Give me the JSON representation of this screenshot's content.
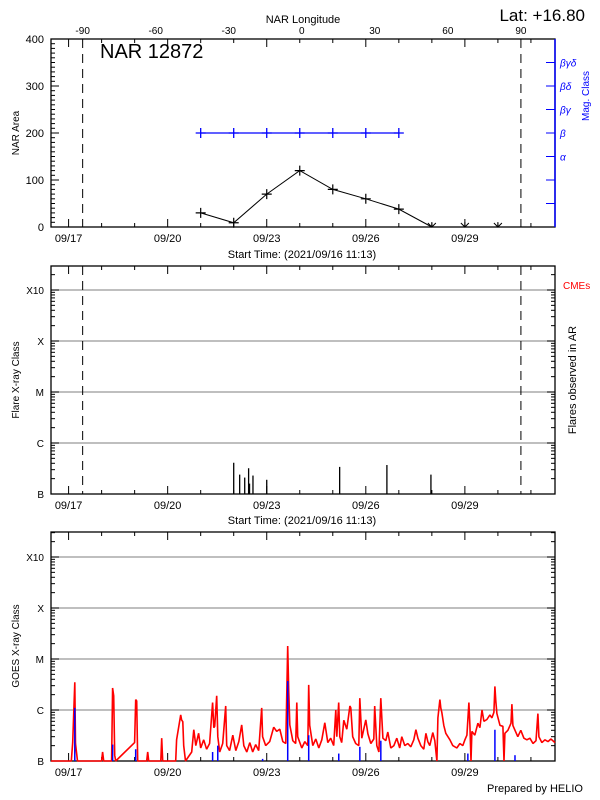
{
  "header": {
    "lat": "Lat: +16.80",
    "title": "NAR 12872",
    "footer": "Prepared by HELIO"
  },
  "colors": {
    "axis": "#000000",
    "grid": "#999999",
    "mag_class": "#0000ff",
    "goes": "#ff0000",
    "ar_flares": "#0000ff",
    "cme": "#ff0000"
  },
  "chart_data": [
    {
      "type": "line",
      "xlabel": "Start Time: (2021/09/16 11:13)",
      "x2label": "NAR Longitude",
      "ylabel": "NAR Area",
      "y2label": "Mag. Class",
      "xlim": [
        "2021/09/16 11:13",
        "2021/10/01 17:30"
      ],
      "x2lim": [
        -103,
        104
      ],
      "xticks": [
        "09/17",
        "09/20",
        "09/23",
        "09/26",
        "09/29"
      ],
      "x2ticks": [
        "-90",
        "-60",
        "-30",
        "0",
        "30",
        "60",
        "90"
      ],
      "limb_longitudes": [
        -90,
        90
      ],
      "ylim": [
        0,
        400
      ],
      "yticks": [
        "0",
        "100",
        "200",
        "300",
        "400"
      ],
      "y2ticks": [
        "",
        "",
        "α",
        "β",
        "βγ",
        "βδ",
        "βγδ"
      ],
      "series": [
        {
          "x": [
            "09/21 00:00",
            "09/22 00:00",
            "09/23 00:00",
            "09/24 00:00",
            "09/25 00:00",
            "09/26 00:00",
            "09/27 00:00",
            "09/28 00:00",
            "09/29 00:00",
            "09/30 00:00"
          ],
          "y": [
            30,
            9,
            70,
            120,
            80,
            60,
            38,
            0,
            0,
            0
          ]
        }
      ],
      "mag_class": {
        "x": [
          "09/21 00:00",
          "09/22 00:00",
          "09/23 00:00",
          "09/24 00:00",
          "09/25 00:00",
          "09/26 00:00",
          "09/27 00:00"
        ],
        "y": [
          "β",
          "β",
          "β",
          "β",
          "β",
          "β",
          "β"
        ]
      }
    },
    {
      "type": "bar",
      "xlabel": "Start Time: (2021/09/16 11:13)",
      "ylabel": "Flare X-ray Class",
      "y2label": "Flares observed in AR",
      "legend": "CMEs",
      "yticks": [
        "B",
        "C",
        "M",
        "X",
        "X10"
      ],
      "grid": true,
      "flares": {
        "x": [
          "09/22 00:00",
          "09/22 04:20",
          "09/22 08:00",
          "09/22 10:50",
          "09/22 11:30",
          "09/22 14:00",
          "09/23 00:00",
          "09/25 05:00",
          "09/26 15:20",
          "09/27 23:20"
        ],
        "class": [
          "B4.1",
          "B2.4",
          "B2.1",
          "B3.2",
          "B1.6",
          "B2.3",
          "B1.9",
          "B3.4",
          "B3.7",
          "B2.4"
        ]
      }
    },
    {
      "type": "line",
      "ylabel": "GOES X-ray Class",
      "yticks": [
        "B",
        "C",
        "M",
        "X",
        "X10"
      ],
      "xticks": [
        "09/17",
        "09/20",
        "09/23",
        "09/26",
        "09/29"
      ],
      "grid": true,
      "goes": [
        [
          "09/16 11:13",
          "A5"
        ],
        [
          "09/17 02:00",
          "A5"
        ],
        [
          "09/17 03:00",
          "B2.3"
        ],
        [
          "09/17 04:30",
          "C3.5"
        ],
        [
          "09/17 05:00",
          "B2.2"
        ],
        [
          "09/17 06:30",
          "A5"
        ],
        [
          "09/18 00:00",
          "A5"
        ],
        [
          "09/18 00:45",
          "B1.5"
        ],
        [
          "09/18 01:30",
          "A5"
        ],
        [
          "09/18 07:15",
          "A5"
        ],
        [
          "09/18 08:00",
          "C2.7"
        ],
        [
          "09/18 08:45",
          "C1.9"
        ],
        [
          "09/18 09:30",
          "B1.3"
        ],
        [
          "09/18 10:15",
          "A5"
        ],
        [
          "09/19 00:00",
          "B2.3"
        ],
        [
          "09/19 00:45",
          "C1.6"
        ],
        [
          "09/19 01:30",
          "C1.5"
        ],
        [
          "09/19 02:15",
          "A5"
        ],
        [
          "09/19 08:45",
          "A5"
        ],
        [
          "09/19 09:30",
          "B1.5"
        ],
        [
          "09/19 10:15",
          "A5"
        ],
        [
          "09/19 19:00",
          "A5"
        ],
        [
          "09/19 19:40",
          "B2.8"
        ],
        [
          "09/19 20:25",
          "A5"
        ],
        [
          "09/20 05:50",
          "A5"
        ],
        [
          "09/20 06:30",
          "B2.6"
        ],
        [
          "09/20 09:30",
          "B8.0"
        ],
        [
          "09/20 10:10",
          "B6.4"
        ],
        [
          "09/20 11:00",
          "B5.9"
        ],
        [
          "09/20 11:40",
          "B2.0"
        ],
        [
          "09/20 13:00",
          "A5"
        ],
        [
          "09/20 17:30",
          "B1.5"
        ],
        [
          "09/20 19:00",
          "B4.1"
        ],
        [
          "09/20 20:25",
          "B2.0"
        ],
        [
          "09/20 22:30",
          "B3.5"
        ],
        [
          "09/21 00:00",
          "B1.8"
        ],
        [
          "09/21 02:10",
          "B2.6"
        ],
        [
          "09/21 04:20",
          "B1.7"
        ],
        [
          "09/21 06:30",
          "B2.2"
        ],
        [
          "09/21 08:40",
          "C1.4"
        ],
        [
          "09/21 09:30",
          "B4.5"
        ],
        [
          "09/21 10:10",
          "B4.8"
        ],
        [
          "09/21 11:40",
          "C1.9"
        ],
        [
          "09/21 12:25",
          "B3.0"
        ],
        [
          "09/21 13:50",
          "B1.5"
        ],
        [
          "09/21 16:00",
          "B2.2"
        ],
        [
          "09/21 18:10",
          "C1.2"
        ],
        [
          "09/21 18:55",
          "B2.0"
        ],
        [
          "09/21 21:00",
          "B1.6"
        ],
        [
          "09/21 23:20",
          "B3.2"
        ],
        [
          "09/22 01:30",
          "B1.6"
        ],
        [
          "09/22 03:40",
          "B2.4"
        ],
        [
          "09/22 05:50",
          "B5.1"
        ],
        [
          "09/22 07:20",
          "B2.0"
        ],
        [
          "09/22 09:30",
          "B1.5"
        ],
        [
          "09/22 11:40",
          "B2.3"
        ],
        [
          "09/22 13:50",
          "B1.5"
        ],
        [
          "09/22 16:00",
          "B2.1"
        ],
        [
          "09/22 18:10",
          "B1.6"
        ],
        [
          "09/22 20:20",
          "C1.1"
        ],
        [
          "09/22 21:00",
          "B3.0"
        ],
        [
          "09/22 23:15",
          "B2.0"
        ],
        [
          "09/23 02:10",
          "B2.4"
        ],
        [
          "09/23 05:05",
          "B4.6"
        ],
        [
          "09/23 07:15",
          "B3.8"
        ],
        [
          "09/23 09:30",
          "B4.2"
        ],
        [
          "09/23 11:40",
          "B2.4"
        ],
        [
          "09/23 13:50",
          "B2.2"
        ],
        [
          "09/23 15:15",
          "M1.8"
        ],
        [
          "09/23 16:00",
          "C2.5"
        ],
        [
          "09/23 16:45",
          "B5.1"
        ],
        [
          "09/23 18:55",
          "B2.5"
        ],
        [
          "09/23 21:05",
          "B2.2"
        ],
        [
          "09/23 21:50",
          "C1.4"
        ],
        [
          "09/23 22:30",
          "B3.0"
        ],
        [
          "09/24 01:30",
          "B1.8"
        ],
        [
          "09/24 03:40",
          "B2.4"
        ],
        [
          "09/24 05:50",
          "B2.0"
        ],
        [
          "09/24 06:30",
          "C3.1"
        ],
        [
          "09/24 07:15",
          "B5.0"
        ],
        [
          "09/24 09:30",
          "B2.0"
        ],
        [
          "09/24 11:40",
          "B2.7"
        ],
        [
          "09/24 13:50",
          "B1.8"
        ],
        [
          "09/24 16:00",
          "B2.6"
        ],
        [
          "09/24 18:10",
          "B5.6"
        ],
        [
          "09/24 20:25",
          "B2.3"
        ],
        [
          "09/24 22:30",
          "B2.8"
        ],
        [
          "09/25 00:40",
          "B2.0"
        ],
        [
          "09/25 02:10",
          "C1.0"
        ],
        [
          "09/25 02:55",
          "B3.0"
        ],
        [
          "09/25 04:20",
          "C1.4"
        ],
        [
          "09/25 05:05",
          "B3.0"
        ],
        [
          "09/25 06:30",
          "B2.3"
        ],
        [
          "09/25 08:00",
          "B6.3"
        ],
        [
          "09/25 10:10",
          "B4.2"
        ],
        [
          "09/25 12:25",
          "C1.2"
        ],
        [
          "09/25 13:05",
          "C1.1"
        ],
        [
          "09/25 14:30",
          "B3.0"
        ],
        [
          "09/25 16:40",
          "B2.2"
        ],
        [
          "09/25 18:55",
          "B2.0"
        ],
        [
          "09/25 19:40",
          "C1.7"
        ],
        [
          "09/25 21:05",
          "B2.8"
        ],
        [
          "09/26 00:00",
          "B6.4"
        ],
        [
          "09/26 01:30",
          "B3.4"
        ],
        [
          "09/26 03:40",
          "B2.2"
        ],
        [
          "09/26 05:50",
          "B2.7"
        ],
        [
          "09/26 06:30",
          "C1.2"
        ],
        [
          "09/26 08:00",
          "B2.0"
        ],
        [
          "09/26 09:30",
          "B1.5"
        ],
        [
          "09/26 10:55",
          "C1.7"
        ],
        [
          "09/26 12:25",
          "B2.8"
        ],
        [
          "09/26 14:30",
          "B2.5"
        ],
        [
          "09/26 16:00",
          "B3.7"
        ],
        [
          "09/26 18:10",
          "B1.8"
        ],
        [
          "09/26 20:25",
          "B2.0"
        ],
        [
          "09/26 22:30",
          "B2.8"
        ],
        [
          "09/27 00:40",
          "B1.8"
        ],
        [
          "09/27 02:10",
          "B3.0"
        ],
        [
          "09/27 04:20",
          "B2.0"
        ],
        [
          "09/27 06:30",
          "B2.2"
        ],
        [
          "09/27 08:40",
          "B1.9"
        ],
        [
          "09/27 10:55",
          "B2.6"
        ],
        [
          "09/27 12:25",
          "B4.1"
        ],
        [
          "09/27 13:50",
          "B2.8"
        ],
        [
          "09/27 16:00",
          "B2.0"
        ],
        [
          "09/27 18:10",
          "B1.7"
        ],
        [
          "09/27 19:40",
          "B3.5"
        ],
        [
          "09/27 21:05",
          "B2.4"
        ],
        [
          "09/27 22:30",
          "B2.0"
        ],
        [
          "09/28 00:40",
          "B3.6"
        ],
        [
          "09/28 02:10",
          "B2.5"
        ],
        [
          "09/28 03:40",
          "A5"
        ],
        [
          "09/28 04:25",
          "B7.0"
        ],
        [
          "09/28 05:50",
          "C1.6"
        ],
        [
          "09/28 06:30",
          "C1.1"
        ],
        [
          "09/28 07:15",
          "B9.0"
        ],
        [
          "09/28 08:40",
          "B5.0"
        ],
        [
          "09/28 10:10",
          "B3.5"
        ],
        [
          "09/28 13:05",
          "B2.6"
        ],
        [
          "09/28 15:15",
          "B2.0"
        ],
        [
          "09/28 18:10",
          "B1.8"
        ],
        [
          "09/28 20:25",
          "B2.2"
        ],
        [
          "09/28 22:30",
          "B2.0"
        ],
        [
          "09/29 00:00",
          "B2.6"
        ],
        [
          "09/29 01:30",
          "B3.2"
        ],
        [
          "09/29 02:55",
          "C1.4"
        ],
        [
          "09/29 03:40",
          "B5.0"
        ],
        [
          "09/29 04:25",
          "A5"
        ],
        [
          "09/29 05:05",
          "B3.8"
        ],
        [
          "09/29 07:15",
          "B3.2"
        ],
        [
          "09/29 09:30",
          "B5.5"
        ],
        [
          "09/29 10:55",
          "B4.5"
        ],
        [
          "09/29 12:25",
          "C1.0"
        ],
        [
          "09/29 13:50",
          "B6.0"
        ],
        [
          "09/29 16:00",
          "B6.5"
        ],
        [
          "09/29 18:10",
          "B8.0"
        ],
        [
          "09/29 19:40",
          "B7.0"
        ],
        [
          "09/29 21:05",
          "B9.0"
        ],
        [
          "09/29 21:50",
          "C2.9"
        ],
        [
          "09/29 22:30",
          "C1.5"
        ],
        [
          "09/29 23:15",
          "B8.5"
        ],
        [
          "09/30 01:30",
          "B5.0"
        ],
        [
          "09/30 03:40",
          "B4.8"
        ],
        [
          "09/30 04:25",
          "A5"
        ],
        [
          "09/30 05:05",
          "B3.5"
        ],
        [
          "09/30 07:15",
          "B4.0"
        ],
        [
          "09/30 09:30",
          "B5.5"
        ],
        [
          "09/30 10:10",
          "C1.3"
        ],
        [
          "09/30 10:55",
          "B5.0"
        ],
        [
          "09/30 12:25",
          "B4.0"
        ],
        [
          "09/30 14:30",
          "B3.0"
        ],
        [
          "09/30 16:40",
          "B4.0"
        ],
        [
          "09/30 18:55",
          "B2.8"
        ],
        [
          "09/30 21:05",
          "B2.6"
        ],
        [
          "09/30 23:15",
          "B2.8"
        ],
        [
          "10/01 01:30",
          "B2.2"
        ],
        [
          "10/01 03:40",
          "B2.5"
        ],
        [
          "10/01 05:05",
          "B8.5"
        ],
        [
          "10/01 05:50",
          "B3.0"
        ],
        [
          "10/01 08:00",
          "B2.3"
        ],
        [
          "10/01 10:10",
          "B2.6"
        ],
        [
          "10/01 12:25",
          "B2.4"
        ],
        [
          "10/01 14:30",
          "B2.7"
        ],
        [
          "10/01 17:30",
          "B2.3"
        ]
      ],
      "ar_flares": [
        [
          "09/17 04:30",
          "C1.1"
        ],
        [
          "09/18 08:00",
          "B2.1"
        ],
        [
          "09/19 00:45",
          "B1.7"
        ],
        [
          "09/21 08:40",
          "B1.5"
        ],
        [
          "09/21 12:25",
          "B2.0"
        ],
        [
          "09/22 21:00",
          "B1.1"
        ],
        [
          "09/23 15:15",
          "C3.7"
        ],
        [
          "09/24 06:30",
          "B3.2"
        ],
        [
          "09/25 04:20",
          "B1.4"
        ],
        [
          "09/25 19:40",
          "B1.9"
        ],
        [
          "09/26 10:55",
          "B2.5"
        ],
        [
          "09/29 02:10",
          "B1.4"
        ],
        [
          "09/29 21:50",
          "B4.1"
        ],
        [
          "09/30 12:25",
          "B1.3"
        ]
      ]
    }
  ]
}
